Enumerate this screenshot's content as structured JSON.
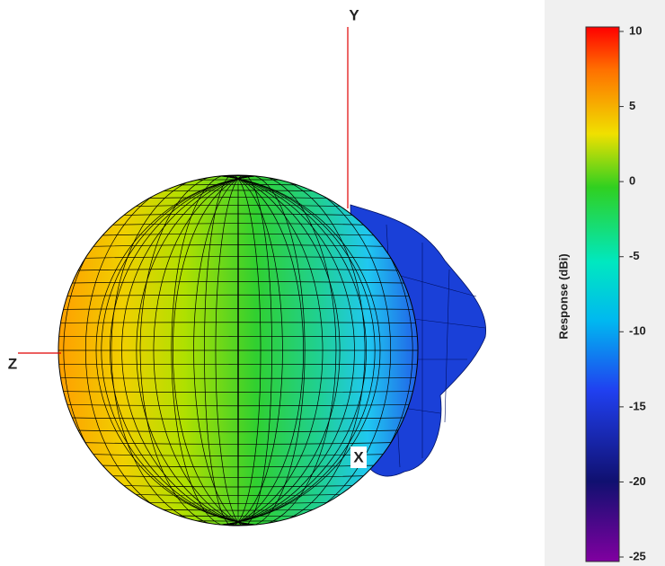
{
  "chart_data": {
    "type": "radiation-pattern-3d",
    "axis_labels": {
      "x": "X",
      "y": "Y",
      "z": "Z"
    },
    "colorbar_label": "Response (dBi)",
    "clim": [
      -25,
      10
    ],
    "cticks": [
      10,
      5,
      0,
      -5,
      -10,
      -15,
      -20,
      -25
    ]
  }
}
